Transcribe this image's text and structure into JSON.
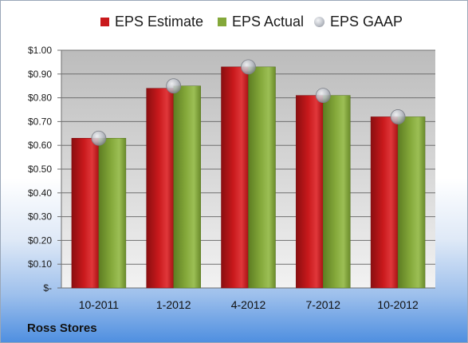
{
  "footer_label": "Ross Stores",
  "colors": {
    "estimate": "#c9191c",
    "actual": "#84a83a",
    "gaap": "#b8bcc4",
    "plot_top": "#bcbcbc",
    "plot_bottom": "#f2f2f2"
  },
  "chart_data": {
    "type": "bar",
    "categories": [
      "10-2011",
      "1-2012",
      "4-2012",
      "7-2012",
      "10-2012"
    ],
    "series": [
      {
        "name": "EPS Estimate",
        "kind": "bar",
        "values": [
          0.63,
          0.84,
          0.93,
          0.81,
          0.72
        ]
      },
      {
        "name": "EPS Actual",
        "kind": "bar",
        "values": [
          0.63,
          0.85,
          0.93,
          0.81,
          0.72
        ]
      },
      {
        "name": "EPS GAAP",
        "kind": "marker",
        "values": [
          0.63,
          0.85,
          0.93,
          0.81,
          0.72
        ]
      }
    ],
    "y_ticks": [
      "$-",
      "$0.10",
      "$0.20",
      "$0.30",
      "$0.40",
      "$0.50",
      "$0.60",
      "$0.70",
      "$0.80",
      "$0.90",
      "$1.00"
    ],
    "ylim": [
      0,
      1.0
    ],
    "grid": true,
    "legend": "top-center",
    "title": "",
    "xlabel": "",
    "ylabel": ""
  }
}
